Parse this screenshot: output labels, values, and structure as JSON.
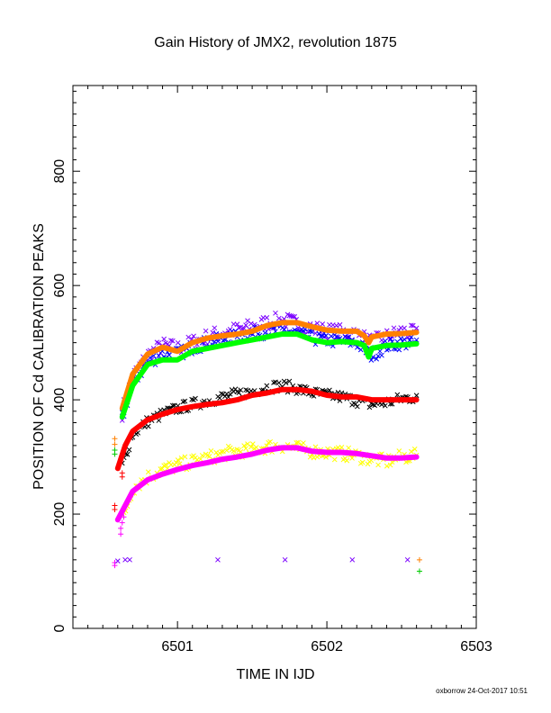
{
  "chart_data": {
    "type": "scatter",
    "title": "Gain History of JMX2, revolution 1875",
    "xlabel": "TIME IN IJD",
    "ylabel": "POSITION OF Cd CALIBRATION PEAKS",
    "footer": "oxborrow 24-Oct-2017 10:51",
    "xlim": [
      6500.3,
      6503.0
    ],
    "ylim": [
      0,
      950
    ],
    "x_ticks": [
      6501,
      6502,
      6503
    ],
    "y_ticks": [
      0,
      200,
      400,
      600,
      800
    ],
    "grid": false,
    "legend": "none",
    "series": [
      {
        "color": "#7b00ff",
        "marker": "x",
        "x": [
          6500.63,
          6500.7,
          6500.8,
          6500.9,
          6501.0,
          6501.1,
          6501.2,
          6501.3,
          6501.4,
          6501.5,
          6501.6,
          6501.7,
          6501.8,
          6501.9,
          6502.0,
          6502.1,
          6502.2,
          6502.3,
          6502.4,
          6502.5,
          6502.6
        ],
        "y": [
          378,
          440,
          478,
          495,
          490,
          500,
          510,
          518,
          522,
          528,
          535,
          540,
          533,
          525,
          520,
          518,
          515,
          500,
          510,
          520,
          515
        ],
        "spread": 14
      },
      {
        "color": "#0000ff",
        "marker": "x",
        "x": [
          6500.63,
          6500.7,
          6500.8,
          6500.9,
          6501.0,
          6501.1,
          6501.2,
          6501.3,
          6501.4,
          6501.5,
          6501.6,
          6501.7,
          6501.8,
          6501.9,
          6502.0,
          6502.1,
          6502.2,
          6502.3,
          6502.4,
          6502.5,
          6502.6
        ],
        "y": [
          368,
          430,
          465,
          480,
          480,
          492,
          500,
          506,
          510,
          515,
          520,
          522,
          516,
          508,
          505,
          502,
          500,
          478,
          495,
          500,
          498
        ],
        "spread": 12
      },
      {
        "color": "#000000",
        "marker": "x",
        "x": [
          6500.63,
          6500.7,
          6500.8,
          6500.9,
          6501.0,
          6501.1,
          6501.2,
          6501.3,
          6501.4,
          6501.5,
          6501.6,
          6501.7,
          6501.8,
          6501.9,
          6502.0,
          6502.1,
          6502.2,
          6502.3,
          6502.4,
          6502.5,
          6502.6
        ],
        "y": [
          285,
          340,
          362,
          375,
          385,
          392,
          398,
          405,
          410,
          415,
          422,
          425,
          420,
          412,
          408,
          405,
          398,
          392,
          395,
          402,
          405
        ],
        "spread": 10
      },
      {
        "color": "#ffff00",
        "marker": "x",
        "x": [
          6500.63,
          6500.7,
          6500.8,
          6500.9,
          6501.0,
          6501.1,
          6501.2,
          6501.3,
          6501.4,
          6501.5,
          6501.6,
          6501.7,
          6501.8,
          6501.9,
          6502.0,
          6502.1,
          6502.2,
          6502.3,
          6502.4,
          6502.5,
          6502.6
        ],
        "y": [
          190,
          245,
          265,
          278,
          285,
          292,
          298,
          305,
          310,
          312,
          318,
          320,
          315,
          310,
          308,
          306,
          302,
          296,
          292,
          300,
          302
        ],
        "spread": 12
      },
      {
        "color": "#ff8000",
        "marker": "line",
        "x": [
          6500.63,
          6500.7,
          6500.8,
          6500.9,
          6501.0,
          6501.1,
          6501.2,
          6501.3,
          6501.4,
          6501.5,
          6501.6,
          6501.7,
          6501.8,
          6501.9,
          6502.0,
          6502.1,
          6502.2,
          6502.25,
          6502.28,
          6502.3,
          6502.4,
          6502.5,
          6502.6
        ],
        "y": [
          385,
          445,
          480,
          492,
          485,
          500,
          508,
          512,
          515,
          520,
          530,
          535,
          535,
          528,
          522,
          520,
          520,
          512,
          500,
          510,
          515,
          516,
          518
        ]
      },
      {
        "color": "#00ff00",
        "marker": "line",
        "x": [
          6500.63,
          6500.7,
          6500.8,
          6500.9,
          6501.0,
          6501.1,
          6501.2,
          6501.3,
          6501.4,
          6501.5,
          6501.6,
          6501.7,
          6501.8,
          6501.9,
          6502.0,
          6502.1,
          6502.2,
          6502.25,
          6502.28,
          6502.3,
          6502.4,
          6502.5,
          6502.6
        ],
        "y": [
          370,
          425,
          462,
          470,
          470,
          485,
          490,
          495,
          500,
          505,
          510,
          515,
          515,
          505,
          500,
          502,
          500,
          495,
          475,
          490,
          495,
          496,
          498
        ]
      },
      {
        "color": "#ff0000",
        "marker": "line",
        "x": [
          6500.6,
          6500.65,
          6500.7,
          6500.8,
          6500.9,
          6501.0,
          6501.1,
          6501.2,
          6501.3,
          6501.4,
          6501.5,
          6501.6,
          6501.7,
          6501.8,
          6501.9,
          6502.0,
          6502.1,
          6502.2,
          6502.3,
          6502.4,
          6502.5,
          6502.6
        ],
        "y": [
          280,
          320,
          345,
          365,
          375,
          383,
          388,
          392,
          395,
          400,
          408,
          412,
          418,
          418,
          415,
          408,
          405,
          405,
          400,
          400,
          400,
          400
        ]
      },
      {
        "color": "#ff00ff",
        "marker": "line",
        "x": [
          6500.6,
          6500.65,
          6500.7,
          6500.8,
          6500.9,
          6501.0,
          6501.1,
          6501.2,
          6501.3,
          6501.4,
          6501.5,
          6501.6,
          6501.7,
          6501.8,
          6501.9,
          6502.0,
          6502.1,
          6502.2,
          6502.3,
          6502.4,
          6502.5,
          6502.6
        ],
        "y": [
          190,
          215,
          240,
          260,
          270,
          278,
          285,
          290,
          296,
          300,
          305,
          312,
          316,
          316,
          310,
          308,
          308,
          306,
          302,
          298,
          298,
          300
        ]
      },
      {
        "color": "#ff8000",
        "marker": "+",
        "x": [
          6500.58,
          6500.58,
          6502.62
        ],
        "y": [
          332,
          322,
          120
        ]
      },
      {
        "color": "#00cc00",
        "marker": "+",
        "x": [
          6500.58,
          6500.58,
          6502.62
        ],
        "y": [
          312,
          305,
          100
        ]
      },
      {
        "color": "#ff0000",
        "marker": "+",
        "x": [
          6500.58,
          6500.58,
          6500.63,
          6500.63
        ],
        "y": [
          215,
          208,
          265,
          272
        ]
      },
      {
        "color": "#ff00ff",
        "marker": "+",
        "x": [
          6500.58,
          6500.58,
          6500.62,
          6500.62,
          6500.63,
          6500.64
        ],
        "y": [
          115,
          110,
          165,
          175,
          185,
          195
        ]
      },
      {
        "color": "#7b00ff",
        "marker": "x",
        "x": [
          6500.6,
          6500.65,
          6500.68,
          6501.27,
          6501.72,
          6502.17,
          6502.54
        ],
        "y": [
          118,
          120,
          120,
          120,
          120,
          120,
          120
        ]
      }
    ]
  }
}
